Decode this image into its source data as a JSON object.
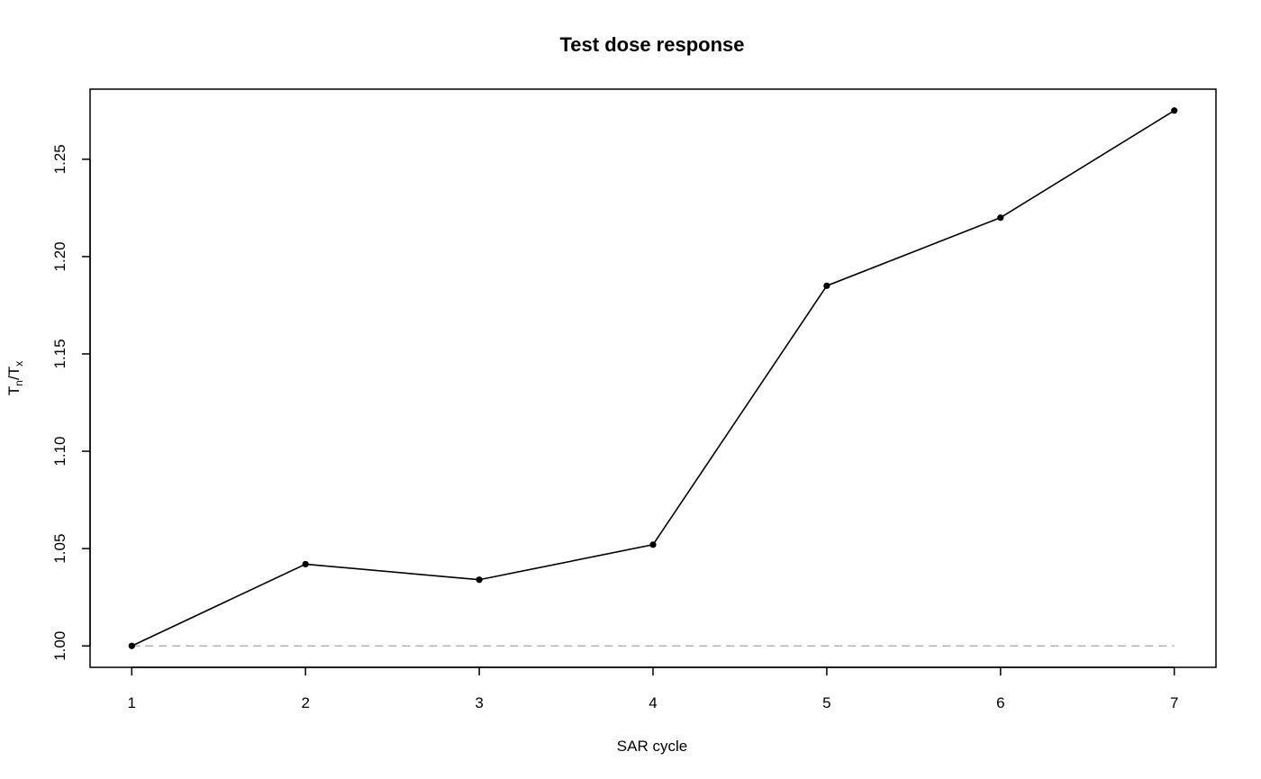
{
  "chart_data": {
    "type": "line",
    "title": "Test dose response",
    "xlabel": "SAR cycle",
    "ylabel": "T",
    "ylabel_sub1": "n",
    "ylabel_sep": "/",
    "ylabel2": "T",
    "ylabel_sub2": "x",
    "xlim": [
      0.76,
      7.24
    ],
    "ylim": [
      0.989,
      1.286
    ],
    "x": [
      1,
      2,
      3,
      4,
      5,
      6,
      7
    ],
    "y": [
      1.0,
      1.042,
      1.034,
      1.052,
      1.185,
      1.22,
      1.275
    ],
    "x_ticks": [
      "1",
      "2",
      "3",
      "4",
      "5",
      "6",
      "7"
    ],
    "y_ticks": [
      "1.00",
      "1.05",
      "1.10",
      "1.15",
      "1.20",
      "1.25"
    ],
    "reference_line": {
      "y": 1.0,
      "style": "dashed",
      "color": "#b3b3b3"
    },
    "line_color": "#000000",
    "grid": false
  }
}
